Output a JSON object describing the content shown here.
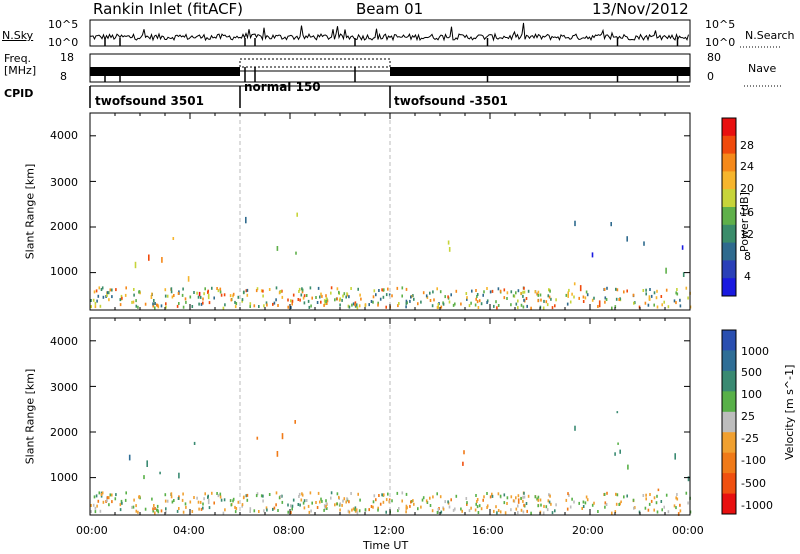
{
  "header": {
    "station": "Rankin Inlet (fitACF)",
    "beam": "Beam 01",
    "date": "13/Nov/2012"
  },
  "strips": {
    "nsky_label": "N.Sky",
    "nsky_ticks": [
      "10^5",
      "10^0"
    ],
    "nsearch_label": "N.Search",
    "nsearch_ticks": [
      "10^5",
      "10^0"
    ],
    "freq_label_1": "Freq.",
    "freq_label_2": "[MHz]",
    "freq_ticks": [
      "18",
      "8"
    ],
    "nave_label": "Nave",
    "nave_ticks": [
      "80",
      "0"
    ],
    "cpid_label": "CPID",
    "cpid_segments": [
      {
        "label": "twofsound 3501",
        "start": 0.0,
        "end": 6.0
      },
      {
        "label": "normal 150",
        "start": 6.0,
        "end": 12.0
      },
      {
        "label": "twofsound -3501",
        "start": 12.0,
        "end": 24.0
      }
    ]
  },
  "panels": {
    "ylabel": "Slant Range [km]",
    "y_ticks": [
      "4000",
      "3000",
      "2000",
      "1000"
    ],
    "x_ticks": [
      "00:00",
      "04:00",
      "08:00",
      "12:00",
      "16:00",
      "20:00",
      "00:00"
    ],
    "xlabel": "Time UT"
  },
  "power_scale": {
    "label": "Power [dB]",
    "ticks": [
      "28",
      "24",
      "20",
      "16",
      "12",
      "8",
      "4"
    ],
    "colors": [
      "#e81010",
      "#f04a0c",
      "#f5891a",
      "#f6b52d",
      "#c7d43a",
      "#5fb04a",
      "#3a8c6a",
      "#2f6a8e",
      "#2a40b8",
      "#1a1ae0"
    ]
  },
  "velocity_scale": {
    "label": "Velocity [m s^-1]",
    "ticks": [
      "1000",
      "500",
      "100",
      "25",
      "-25",
      "-100",
      "-500",
      "-1000"
    ],
    "colors": [
      "#2a4fb0",
      "#2f6e96",
      "#3a8a72",
      "#58b048",
      "#bdbdbd",
      "#f0a030",
      "#f07a18",
      "#f05010",
      "#e81010"
    ]
  },
  "chart_data": {
    "type": "heatmap",
    "xlim": [
      0,
      24
    ],
    "ylim": [
      180,
      4500
    ],
    "x_unit": "hours UT",
    "y_unit": "km",
    "scatter_regions": [
      {
        "t0": 0.0,
        "t1": 4.5,
        "r0": 300,
        "r1": 1700,
        "power": 24,
        "velocity": 100
      },
      {
        "t0": 1.5,
        "t1": 4.5,
        "r0": 900,
        "r1": 2100,
        "power": 22,
        "velocity": 500
      },
      {
        "t0": 6.0,
        "t1": 9.0,
        "r0": 1300,
        "r1": 2700,
        "power": 16,
        "velocity": -100
      },
      {
        "t0": 13.5,
        "t1": 16.0,
        "r0": 1300,
        "r1": 2400,
        "power": 22,
        "velocity": -500
      },
      {
        "t0": 15.5,
        "t1": 24.0,
        "r0": 200,
        "r1": 900,
        "power": 26,
        "velocity": -100
      },
      {
        "t0": 19.0,
        "t1": 24.0,
        "r0": 900,
        "r1": 2700,
        "power": 12,
        "velocity": 100
      }
    ]
  }
}
